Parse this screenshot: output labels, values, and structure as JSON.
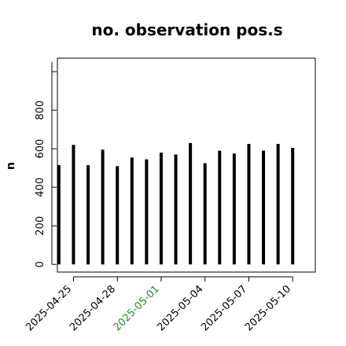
{
  "chart_data": {
    "type": "bar",
    "title": "no. observation pos.s",
    "ylabel": "n",
    "xlabel": "",
    "ylim": [
      -40,
      1070
    ],
    "yticks": [
      0,
      200,
      400,
      600,
      800
    ],
    "grid": false,
    "x_dates": [
      "2025-04-24",
      "2025-04-25",
      "2025-04-26",
      "2025-04-27",
      "2025-04-28",
      "2025-04-29",
      "2025-04-30",
      "2025-05-01",
      "2025-05-02",
      "2025-05-03",
      "2025-05-04",
      "2025-05-05",
      "2025-05-06",
      "2025-05-07",
      "2025-05-08",
      "2025-05-09",
      "2025-05-10"
    ],
    "values": [
      515,
      620,
      515,
      595,
      510,
      555,
      545,
      580,
      570,
      630,
      525,
      590,
      575,
      625,
      590,
      625,
      605
    ],
    "x_tick_labels": [
      {
        "label": "2025-04-25",
        "date": "2025-04-25",
        "color": "#000000"
      },
      {
        "label": "2025-04-28",
        "date": "2025-04-28",
        "color": "#000000"
      },
      {
        "label": "2025-05-01",
        "date": "2025-05-01",
        "color": "#228B22"
      },
      {
        "label": "2025-05-04",
        "date": "2025-05-04",
        "color": "#000000"
      },
      {
        "label": "2025-05-07",
        "date": "2025-05-07",
        "color": "#000000"
      },
      {
        "label": "2025-05-10",
        "date": "2025-05-10",
        "color": "#000000"
      }
    ],
    "bar_color": "#000000"
  }
}
